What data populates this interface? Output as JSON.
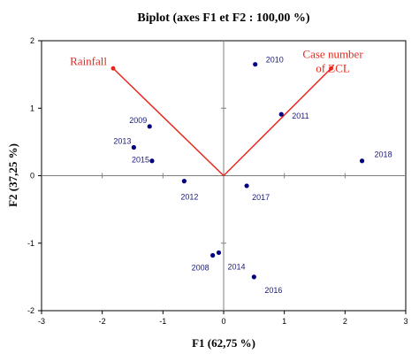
{
  "chart_data": {
    "type": "scatter",
    "title": "Biplot (axes F1 et F2 : 100,00 %)",
    "xlabel": "F1 (62,75 %)",
    "ylabel": "F2 (37,25 %)",
    "xlim": [
      -3,
      3
    ],
    "ylim": [
      -2,
      2
    ],
    "x_ticks": [
      -3,
      -2,
      -1,
      0,
      1,
      2,
      3
    ],
    "y_ticks": [
      -2,
      -1,
      0,
      1,
      2
    ],
    "grid": false,
    "colors": {
      "observations": "#000080",
      "variables": "#e8271c",
      "observation_label": "#1a1a7a"
    },
    "observations": [
      {
        "label": "2010",
        "x": 0.52,
        "y": 1.65
      },
      {
        "label": "2011",
        "x": 0.95,
        "y": 0.91
      },
      {
        "label": "2009",
        "x": -1.22,
        "y": 0.73
      },
      {
        "label": "2013",
        "x": -1.48,
        "y": 0.42
      },
      {
        "label": "2015",
        "x": -1.18,
        "y": 0.22
      },
      {
        "label": "2018",
        "x": 2.28,
        "y": 0.22
      },
      {
        "label": "2012",
        "x": -0.65,
        "y": -0.08
      },
      {
        "label": "2017",
        "x": 0.38,
        "y": -0.15
      },
      {
        "label": "2008",
        "x": -0.18,
        "y": -1.18
      },
      {
        "label": "2014",
        "x": -0.08,
        "y": -1.14
      },
      {
        "label": "2016",
        "x": 0.5,
        "y": -1.5
      }
    ],
    "variables": [
      {
        "name": "Rainfall",
        "x": -1.82,
        "y": 1.59
      },
      {
        "name": "Case number of ZCL",
        "x": 1.77,
        "y": 1.59
      }
    ]
  }
}
